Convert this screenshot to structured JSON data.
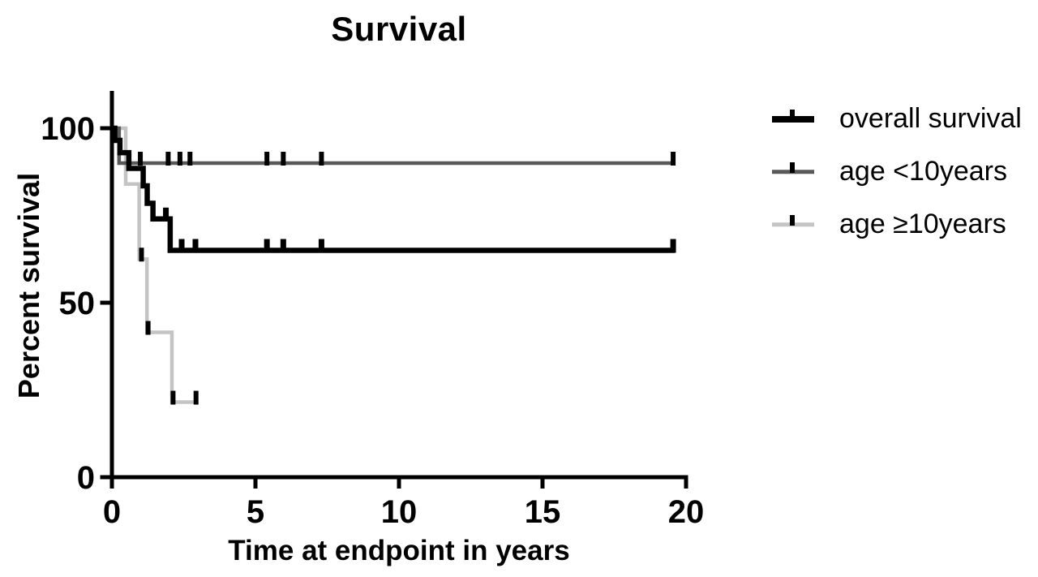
{
  "page": {
    "background": "#ffffff",
    "text_color": "#000000"
  },
  "chart_data": {
    "type": "line",
    "subtype": "kaplan-meier-step-curves",
    "title": "Survival",
    "xlabel": "Time at endpoint in years",
    "ylabel": "Percent survival",
    "xlim": [
      0,
      20
    ],
    "ylim": [
      0,
      100
    ],
    "x_ticks": [
      0,
      5,
      10,
      15,
      20
    ],
    "y_ticks": [
      0,
      50,
      100
    ],
    "grid": false,
    "legend_position": "right",
    "axis_color": "#000000",
    "censor_tick_color": "#000000",
    "series": [
      {
        "name": "overall survival",
        "color": "#000000",
        "line_width": 6.5,
        "steps": [
          [
            0,
            100
          ],
          [
            0.1,
            96.5
          ],
          [
            0.28,
            93
          ],
          [
            0.59,
            88.5
          ],
          [
            1.09,
            83.5
          ],
          [
            1.23,
            78.5
          ],
          [
            1.43,
            74
          ],
          [
            2.03,
            65
          ]
        ],
        "end_time": 19.6,
        "censor_marks": [
          [
            1.88,
            74
          ],
          [
            2.43,
            65
          ],
          [
            2.91,
            65
          ],
          [
            5.4,
            65
          ],
          [
            5.97,
            65
          ],
          [
            7.3,
            65
          ],
          [
            19.55,
            65
          ]
        ]
      },
      {
        "name": "age <10years",
        "color": "#595959",
        "line_width": 4.5,
        "steps": [
          [
            0,
            100
          ],
          [
            0.25,
            90
          ]
        ],
        "end_time": 19.6,
        "censor_marks": [
          [
            0.99,
            90
          ],
          [
            1.96,
            90
          ],
          [
            2.37,
            90
          ],
          [
            2.72,
            90
          ],
          [
            5.4,
            90
          ],
          [
            5.97,
            90
          ],
          [
            7.3,
            90
          ],
          [
            19.55,
            90
          ]
        ]
      },
      {
        "name": "age ≥10years",
        "color": "#c4c4c4",
        "line_width": 4.5,
        "steps": [
          [
            0,
            100
          ],
          [
            0.48,
            84
          ],
          [
            0.95,
            62.5
          ],
          [
            1.22,
            41.5
          ],
          [
            2.09,
            21.5
          ]
        ],
        "end_time": 3.0,
        "censor_marks": [
          [
            1.03,
            62.5
          ],
          [
            1.26,
            41.5
          ],
          [
            2.13,
            21.5
          ],
          [
            2.93,
            21.5
          ]
        ]
      }
    ]
  }
}
